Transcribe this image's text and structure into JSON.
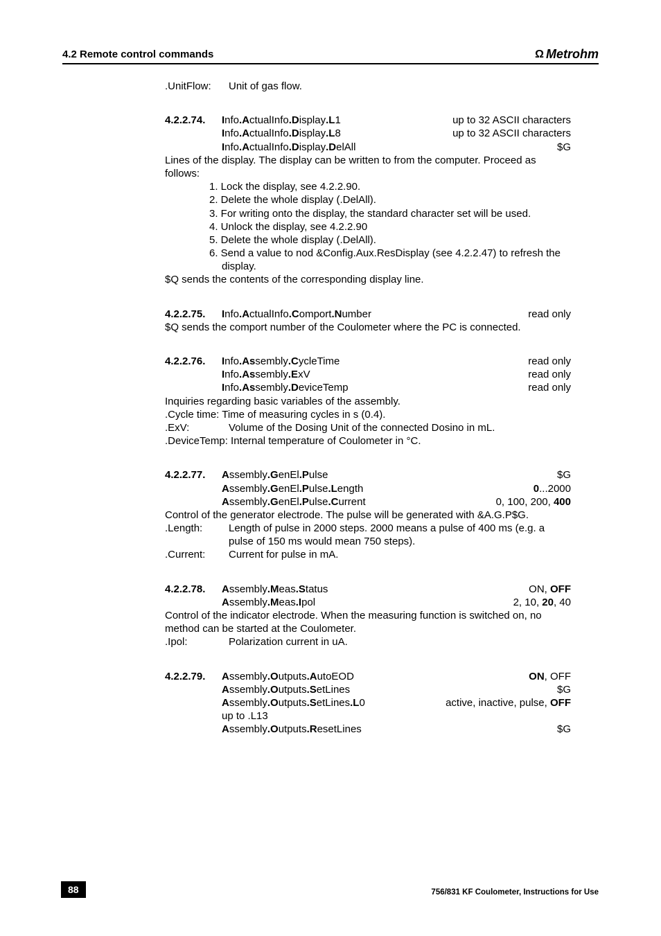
{
  "header": {
    "title": "4.2 Remote control commands",
    "logo": "Metrohm"
  },
  "footer": {
    "page": "88",
    "doc": "756/831 KF Coulometer, Instructions for Use"
  },
  "unitflow": {
    "label": ".UnitFlow:",
    "text": "Unit of gas flow."
  },
  "s74": {
    "num": "4.2.2.74.",
    "r1a": "nfo",
    "r1b": "ctualInfo",
    "r1c": "isplay",
    "r1d": "1",
    "r1v": "up to 32 ASCII characters",
    "r2a": "nfo",
    "r2b": "ctualInfo",
    "r2c": "isplay",
    "r2d": "8",
    "r2v": "up to 32 ASCII characters",
    "r3a": "nfo",
    "r3b": "ctualInfo",
    "r3c": "isplay",
    "r3d": "elAll",
    "r3v": "$G",
    "p1": "Lines of the display. The display can be written to from the computer. Proceed as follows:",
    "l1": "1.  Lock the display, see 4.2.2.90.",
    "l2": "2.  Delete the whole display (.DelAll).",
    "l3": "3.  For writing onto the display, the standard character set will be used.",
    "l4": "4.  Unlock the display, see 4.2.2.90",
    "l5": "5.  Delete the whole display (.DelAll).",
    "l6": "6.  Send a value to nod &Config.Aux.ResDisplay (see 4.2.2.47) to refresh the display.",
    "p2": "$Q sends the contents of the corresponding display line."
  },
  "s75": {
    "num": "4.2.2.75.",
    "a": "nfo",
    "b": "ctualInfo",
    "c": "omport",
    "d": "umber",
    "v": "read only",
    "p": "$Q sends the comport number of the Coulometer where the PC is connected."
  },
  "s76": {
    "num": "4.2.2.76.",
    "r1a": "nfo",
    "r1b": "sembly",
    "r1c": "ycleTime",
    "r1v": "read only",
    "r2a": "nfo",
    "r2b": "sembly",
    "r2c": "xV",
    "r2v": "read only",
    "r3a": "nfo",
    "r3b": "sembly",
    "r3c": "eviceTemp",
    "r3v": "read only",
    "p1": "Inquiries regarding basic variables of the assembly.",
    "p2": ".Cycle time: Time of measuring cycles in s (0.4).",
    "d1l": ".ExV:",
    "d1t": "Volume of the Dosing Unit of the connected Dosino in mL.",
    "p3": ".DeviceTemp: Internal temperature of Coulometer in °C."
  },
  "s77": {
    "num": "4.2.2.77.",
    "r1a": "ssembly",
    "r1b": "enEl",
    "r1c": "ulse",
    "r1v": "$G",
    "r2a": "ssembly",
    "r2b": "enEl",
    "r2c": "ulse",
    "r2d": "ength",
    "r2va": "0",
    "r2vb": "...2000",
    "r3a": "ssembly",
    "r3b": "enEl",
    "r3c": "ulse",
    "r3d": "urrent",
    "r3va": "0, 100, 200, ",
    "r3vb": "400",
    "p1": "Control of the generator electrode. The pulse will be generated with &A.G.P$G.",
    "d1l": ".Length:",
    "d1t": "Length of pulse in 2000 steps. 2000 means a pulse of 400 ms (e.g. a pulse of 150 ms would mean 750 steps).",
    "d2l": ".Current:",
    "d2t": "Current for pulse in mA."
  },
  "s78": {
    "num": "4.2.2.78.",
    "r1a": "ssembly",
    "r1b": "eas",
    "r1c": "tatus",
    "r1va": "ON, ",
    "r1vb": "OFF",
    "r2a": "ssembly",
    "r2b": "eas",
    "r2c": "pol",
    "r2va": "2, 10, ",
    "r2vb": "20",
    "r2vc": ", 40",
    "p1": "Control of the indicator electrode. When the measuring function is switched on, no method can be started at the Coulometer.",
    "d1l": ".Ipol:",
    "d1t": "Polarization current in uA."
  },
  "s79": {
    "num": "4.2.2.79.",
    "r1a": "ssembly",
    "r1b": "utputs",
    "r1c": "utoEOD",
    "r1va": "ON",
    "r1vb": ", OFF",
    "r2a": "ssembly",
    "r2b": "utputs",
    "r2c": "etLines",
    "r2v": "$G",
    "r3a": "ssembly",
    "r3b": "utputs",
    "r3c": "etLines",
    "r3d": "0",
    "r3e": "up to .L13",
    "r3va": "active, inactive, pulse, ",
    "r3vb": "OFF",
    "r4a": "ssembly",
    "r4b": "utputs",
    "r4c": "esetLines",
    "r4v": "$G"
  }
}
